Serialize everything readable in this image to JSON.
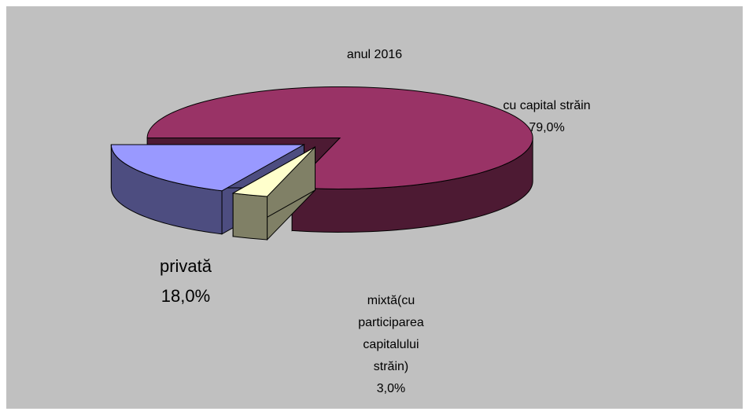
{
  "chart_data": {
    "type": "pie3d",
    "title": "anul 2016",
    "categories": [
      "cu capital străin",
      "mixtă(cu participarea capitalului străin)",
      "privată"
    ],
    "values": [
      79,
      3,
      18
    ],
    "value_labels": [
      "79,0%",
      "3,0%",
      "18,0%"
    ],
    "colors": [
      "#993366",
      "#ffffcc",
      "#9999ff"
    ]
  }
}
